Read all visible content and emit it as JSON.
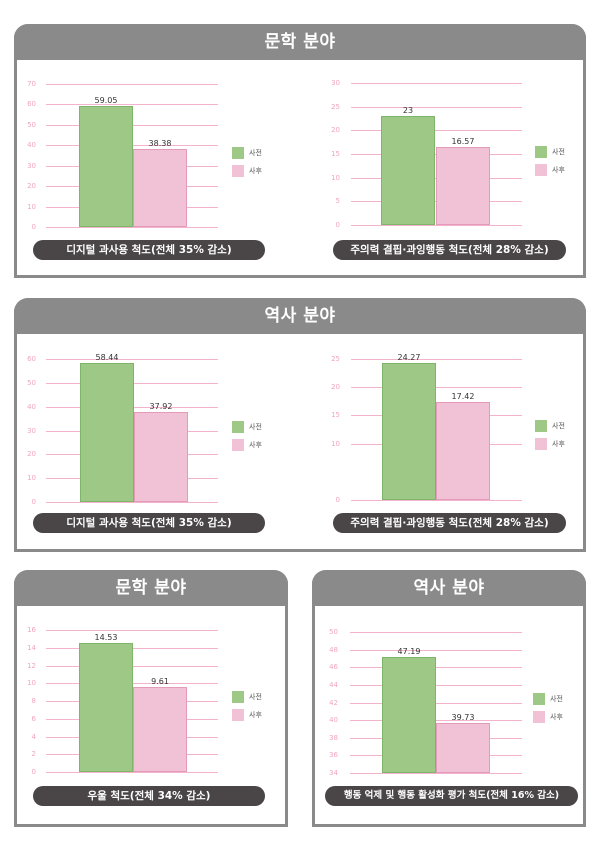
{
  "panels": [
    {
      "title": "문학 분야"
    },
    {
      "title": "역사 분야"
    },
    {
      "title": "문학 분야"
    },
    {
      "title": "역사 분야"
    }
  ],
  "legend": {
    "pre": "사전",
    "post": "사후"
  },
  "colors": {
    "pre": "#9dc886",
    "post": "#f1c1d5",
    "header": "#8a8a8a",
    "pill": "#4a4546",
    "grid": "#f3b3cc"
  },
  "chart_data": [
    {
      "type": "bar",
      "panel": "문학 분야",
      "title": "디지털 과사용 척도(전체 35% 감소)",
      "categories": [
        "사전",
        "사후"
      ],
      "values": [
        59.05,
        38.38
      ],
      "labels": [
        "59.05",
        "38.38"
      ],
      "yticks": [
        "70",
        "60",
        "50",
        "40",
        "30",
        "20",
        "10",
        "0"
      ],
      "ylim": [
        0,
        70
      ],
      "grid": true,
      "legend_position": "right"
    },
    {
      "type": "bar",
      "panel": "문학 분야",
      "title": "주의력 결핍·과잉행동 척도(전체 28% 감소)",
      "categories": [
        "사전",
        "사후"
      ],
      "values": [
        23,
        16.57
      ],
      "labels": [
        "23",
        "16.57"
      ],
      "yticks": [
        "30",
        "25",
        "20",
        "15",
        "10",
        "5",
        "0"
      ],
      "ylim": [
        0,
        30
      ],
      "grid": true,
      "legend_position": "right"
    },
    {
      "type": "bar",
      "panel": "역사 분야",
      "title": "디지털 과사용 척도(전체 35% 감소)",
      "categories": [
        "사전",
        "사후"
      ],
      "values": [
        58.44,
        37.92
      ],
      "labels": [
        "58.44",
        "37.92"
      ],
      "yticks": [
        "60",
        "50",
        "40",
        "30",
        "20",
        "10",
        "0"
      ],
      "ylim": [
        0,
        60
      ],
      "grid": true,
      "legend_position": "right"
    },
    {
      "type": "bar",
      "panel": "역사 분야",
      "title": "주의력 결핍·과잉행동 척도(전체 28% 감소)",
      "categories": [
        "사전",
        "사후"
      ],
      "values": [
        24.27,
        17.42
      ],
      "labels": [
        "24.27",
        "17.42"
      ],
      "yticks": [
        "25",
        "20",
        "15",
        "10",
        "0"
      ],
      "ylim": [
        0,
        25
      ],
      "grid": true,
      "legend_position": "right"
    },
    {
      "type": "bar",
      "panel": "문학 분야",
      "title": "우울 척도(전체 34% 감소)",
      "categories": [
        "사전",
        "사후"
      ],
      "values": [
        14.53,
        9.61
      ],
      "labels": [
        "14.53",
        "9.61"
      ],
      "yticks": [
        "16",
        "14",
        "12",
        "10",
        "8",
        "6",
        "4",
        "2",
        "0"
      ],
      "ylim": [
        0,
        16
      ],
      "grid": true,
      "legend_position": "right"
    },
    {
      "type": "bar",
      "panel": "역사 분야",
      "title": "행동 억제 및 행동 활성화 평가 척도(전체 16% 감소)",
      "categories": [
        "사전",
        "사후"
      ],
      "values": [
        47.19,
        39.73
      ],
      "labels": [
        "47.19",
        "39.73"
      ],
      "yticks": [
        "50",
        "48",
        "46",
        "44",
        "42",
        "40",
        "38",
        "36",
        "34"
      ],
      "ylim": [
        34,
        50
      ],
      "grid": true,
      "legend_position": "right"
    }
  ]
}
